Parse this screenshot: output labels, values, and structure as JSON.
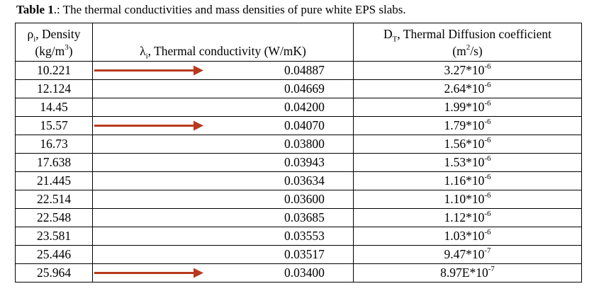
{
  "caption": {
    "label": "Table 1",
    "rest": ".: The thermal conductivities and mass densities of pure white EPS slabs."
  },
  "header": {
    "col1": {
      "symbol": "ρ",
      "sub": "i",
      "name": ", Density",
      "unit": "(kg/m",
      "unit_sup": "3",
      "unit_end": ")"
    },
    "col2": {
      "symbol": "λ",
      "sub": "i",
      "name": ", Thermal conductivity (W/mK)"
    },
    "col3": {
      "symbol": "D",
      "sub": "T",
      "name": ", Thermal Diffusion coefficient",
      "unit": "(m",
      "unit_sup": "2",
      "unit_end": "/s)"
    }
  },
  "rows": [
    {
      "density": "10.221",
      "conductivity": "0.04887",
      "diff_base": "3.27*10",
      "diff_exp": "-6",
      "arrow": true
    },
    {
      "density": "12.124",
      "conductivity": "0.04669",
      "diff_base": "2.64*10",
      "diff_exp": "-6",
      "arrow": false
    },
    {
      "density": "14.45",
      "conductivity": "0.04200",
      "diff_base": "1.99*10",
      "diff_exp": "-6",
      "arrow": false
    },
    {
      "density": "15.57",
      "conductivity": "0.04070",
      "diff_base": "1.79*10",
      "diff_exp": "-6",
      "arrow": true
    },
    {
      "density": "16.73",
      "conductivity": "0.03800",
      "diff_base": "1.56*10",
      "diff_exp": "-6",
      "arrow": false
    },
    {
      "density": "17.638",
      "conductivity": "0.03943",
      "diff_base": "1.53*10",
      "diff_exp": "-6",
      "arrow": false
    },
    {
      "density": "21.445",
      "conductivity": "0.03634",
      "diff_base": "1.16*10",
      "diff_exp": "-6",
      "arrow": false
    },
    {
      "density": "22.514",
      "conductivity": "0.03600",
      "diff_base": "1.10*10",
      "diff_exp": "-6",
      "arrow": false
    },
    {
      "density": "22.548",
      "conductivity": "0.03685",
      "diff_base": "1.12*10",
      "diff_exp": "-6",
      "arrow": false
    },
    {
      "density": "23.581",
      "conductivity": "0.03553",
      "diff_base": "1.03*10",
      "diff_exp": "-6",
      "arrow": false
    },
    {
      "density": "25.446",
      "conductivity": "0.03517",
      "diff_base": "9.47*10",
      "diff_exp": "-7",
      "arrow": false
    },
    {
      "density": "25.964",
      "conductivity": "0.03400",
      "diff_base": "8.97E*10",
      "diff_exp": "-7",
      "arrow": true
    }
  ],
  "colors": {
    "arrow": "#b83a1e",
    "border": "#000000"
  }
}
